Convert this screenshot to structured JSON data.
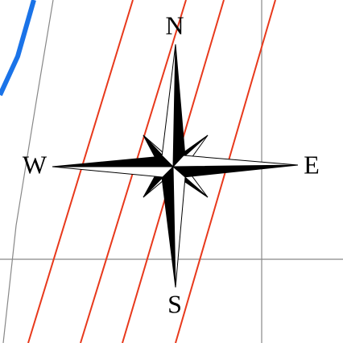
{
  "labels": {
    "north": "N",
    "east": "E",
    "south": "S",
    "west": "W"
  }
}
